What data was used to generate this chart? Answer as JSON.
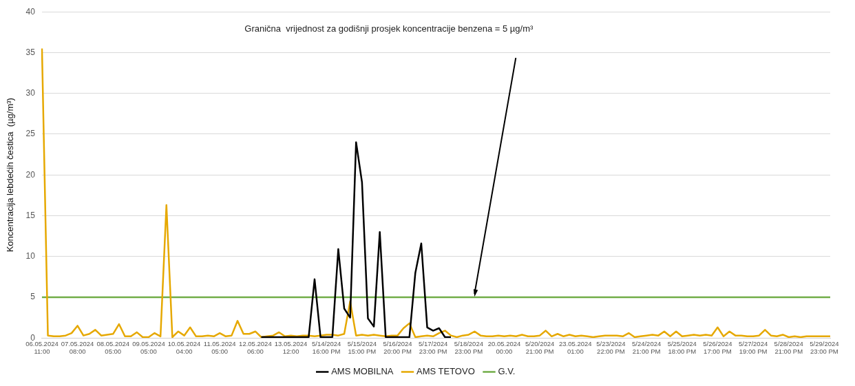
{
  "chart_data": {
    "type": "line",
    "ylabel": "Koncentracija lebdećih čestica  (µg/m³)",
    "categories": [
      "06.05.2024 11:00",
      null,
      null,
      null,
      null,
      null,
      "07.05.2024 08:00",
      null,
      null,
      null,
      null,
      null,
      "08.05.2024 05:00",
      null,
      null,
      null,
      null,
      null,
      "09.05.2024 05:00",
      null,
      null,
      null,
      null,
      null,
      "10.05.2024 04:00",
      null,
      null,
      null,
      null,
      null,
      "11.05.2024 05:00",
      null,
      null,
      null,
      null,
      null,
      "12.05.2024 06:00",
      null,
      null,
      null,
      null,
      null,
      "13.05.2024 12:00",
      null,
      null,
      null,
      null,
      null,
      "5/14/2024 16:00 PM",
      null,
      null,
      null,
      null,
      null,
      "5/15/2024 15:00 PM",
      null,
      null,
      null,
      null,
      null,
      "5/16/2024 20:00 PM",
      null,
      null,
      null,
      null,
      null,
      "5/17/2024 23:00 PM",
      null,
      null,
      null,
      null,
      null,
      "5/18/2024 23:00 PM",
      null,
      null,
      null,
      null,
      null,
      "20.05.2024 00:00",
      null,
      null,
      null,
      null,
      null,
      "5/20/2024 21:00 PM",
      null,
      null,
      null,
      null,
      null,
      "23.05.2024 01:00",
      null,
      null,
      null,
      null,
      null,
      "5/23/2024 22:00 PM",
      null,
      null,
      null,
      null,
      null,
      "5/24/2024 21:00 PM",
      null,
      null,
      null,
      null,
      null,
      "5/25/2024 18:00 PM",
      null,
      null,
      null,
      null,
      null,
      "5/26/2024 17:00 PM",
      null,
      null,
      null,
      null,
      null,
      "5/27/2024 19:00 PM",
      null,
      null,
      null,
      null,
      null,
      "5/28/2024 21:00 PM",
      null,
      null,
      null,
      null,
      null,
      "5/29/2024 23:00 PM",
      null
    ],
    "series": [
      {
        "name": "AMS MOBILNA",
        "color": "#000000",
        "values": [
          null,
          null,
          null,
          null,
          null,
          null,
          null,
          null,
          null,
          null,
          null,
          null,
          null,
          null,
          null,
          null,
          null,
          null,
          null,
          null,
          null,
          null,
          null,
          null,
          null,
          null,
          null,
          null,
          null,
          null,
          null,
          null,
          null,
          null,
          null,
          null,
          null,
          0.1,
          0.1,
          0.1,
          0.1,
          0.1,
          0.1,
          0.1,
          0.1,
          0.1,
          7.2,
          0.1,
          0.1,
          0.1,
          10.9,
          3.6,
          2.5,
          24,
          19.1,
          2.4,
          1.4,
          13,
          0.1,
          0.1,
          0.1,
          0.1,
          0.1,
          8,
          11.6,
          1.3,
          0.9,
          1.2,
          0.1,
          0.1,
          null,
          null,
          null,
          null,
          null,
          null,
          null,
          null,
          null,
          null,
          null,
          null,
          null,
          null,
          null,
          null,
          null,
          null,
          null,
          null,
          null,
          null,
          null,
          null,
          null,
          null,
          null,
          null,
          null,
          null,
          null,
          null,
          null,
          null,
          null,
          null,
          null,
          null,
          null,
          null,
          null,
          null,
          null,
          null,
          null,
          null,
          null,
          null,
          null,
          null,
          null,
          null,
          null,
          null,
          null,
          null,
          null,
          null,
          null,
          null,
          null,
          null,
          null,
          null
        ]
      },
      {
        "name": "AMS TETOVO",
        "color": "#e6a800",
        "values": [
          35.5,
          0.3,
          0.2,
          0.2,
          0.3,
          0.6,
          1.5,
          0.3,
          0.5,
          1.0,
          0.3,
          0.4,
          0.5,
          1.7,
          0.2,
          0.2,
          0.7,
          0.1,
          0.1,
          0.6,
          0.2,
          16.3,
          0.1,
          0.8,
          0.3,
          1.3,
          0.2,
          0.2,
          0.3,
          0.2,
          0.6,
          0.2,
          0.3,
          2.1,
          0.5,
          0.5,
          0.8,
          0.1,
          0.2,
          0.3,
          0.7,
          0.2,
          0.3,
          0.2,
          0.3,
          0.3,
          0.2,
          0.3,
          0.4,
          0.4,
          0.3,
          0.5,
          4.5,
          0.3,
          0.4,
          0.3,
          0.4,
          0.3,
          0.2,
          0.3,
          0.3,
          1.2,
          1.8,
          0.1,
          0.2,
          0.3,
          0.2,
          0.6,
          0.9,
          0.3,
          0.1,
          0.3,
          0.4,
          0.8,
          0.3,
          0.2,
          0.2,
          0.3,
          0.2,
          0.3,
          0.2,
          0.4,
          0.2,
          0.2,
          0.3,
          0.9,
          0.2,
          0.5,
          0.2,
          0.4,
          0.2,
          0.3,
          0.2,
          0.1,
          0.2,
          0.3,
          0.3,
          0.3,
          0.2,
          0.6,
          0.1,
          0.2,
          0.3,
          0.4,
          0.3,
          0.8,
          0.2,
          0.8,
          0.2,
          0.3,
          0.4,
          0.3,
          0.4,
          0.3,
          1.3,
          0.2,
          0.8,
          0.3,
          0.3,
          0.2,
          0.2,
          0.3,
          1.0,
          0.3,
          0.2,
          0.4,
          0.1,
          0.2,
          0.1,
          0.2,
          0.2,
          0.2,
          0.2,
          0.2
        ]
      },
      {
        "name": "G.V.",
        "color": "#70ad47",
        "values": [
          5,
          5,
          5,
          5,
          5,
          5,
          5,
          5,
          5,
          5,
          5,
          5,
          5,
          5,
          5,
          5,
          5,
          5,
          5,
          5,
          5,
          5,
          5,
          5,
          5,
          5,
          5,
          5,
          5,
          5,
          5,
          5,
          5,
          5,
          5,
          5,
          5,
          5,
          5,
          5,
          5,
          5,
          5,
          5,
          5,
          5,
          5,
          5,
          5,
          5,
          5,
          5,
          5,
          5,
          5,
          5,
          5,
          5,
          5,
          5,
          5,
          5,
          5,
          5,
          5,
          5,
          5,
          5,
          5,
          5,
          5,
          5,
          5,
          5,
          5,
          5,
          5,
          5,
          5,
          5,
          5,
          5,
          5,
          5,
          5,
          5,
          5,
          5,
          5,
          5,
          5,
          5,
          5,
          5,
          5,
          5,
          5,
          5,
          5,
          5,
          5,
          5,
          5,
          5,
          5,
          5,
          5,
          5,
          5,
          5,
          5,
          5,
          5,
          5,
          5,
          5,
          5,
          5,
          5,
          5,
          5,
          5,
          5,
          5,
          5,
          5,
          5,
          5,
          5,
          5,
          5,
          5,
          5,
          5
        ]
      }
    ],
    "ylim": [
      0,
      40
    ],
    "yticks": [
      0,
      5,
      10,
      15,
      20,
      25,
      30,
      35,
      40
    ],
    "grid": "y",
    "legend": "bottom",
    "annotations": [
      "Granična  vrijednost za godišnji prosjek koncentracije benzena = 5 µg/m³"
    ]
  }
}
